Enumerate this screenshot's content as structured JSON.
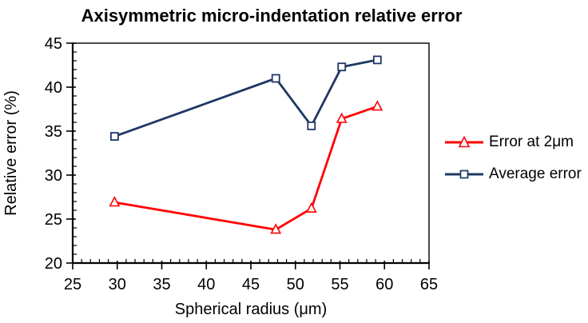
{
  "chart_data": {
    "type": "line",
    "title": "Axisymmetric micro-indentation relative error",
    "xlabel": "Spherical radius (μm)",
    "ylabel": "Relative error  (%)",
    "xlim": [
      25,
      65
    ],
    "ylim": [
      20,
      45
    ],
    "x_major_ticks": [
      25,
      30,
      35,
      40,
      45,
      50,
      55,
      60,
      65
    ],
    "y_major_ticks": [
      20,
      25,
      30,
      35,
      40,
      45
    ],
    "minor_tick_step": 1,
    "grid": false,
    "legend_position": "center-right",
    "axis_color": "#000000",
    "text_color": "#000000",
    "series": [
      {
        "name": "Error at 2μm",
        "color": "#ff0000",
        "marker": "triangle",
        "x": [
          29.7,
          47.8,
          51.8,
          55.2,
          59.2
        ],
        "y": [
          26.9,
          23.8,
          26.2,
          36.4,
          37.8
        ]
      },
      {
        "name": "Average error",
        "color": "#1f3864",
        "marker": "square",
        "x": [
          29.7,
          47.8,
          51.8,
          55.2,
          59.2
        ],
        "y": [
          34.4,
          41.0,
          35.6,
          42.3,
          43.1
        ]
      }
    ]
  }
}
